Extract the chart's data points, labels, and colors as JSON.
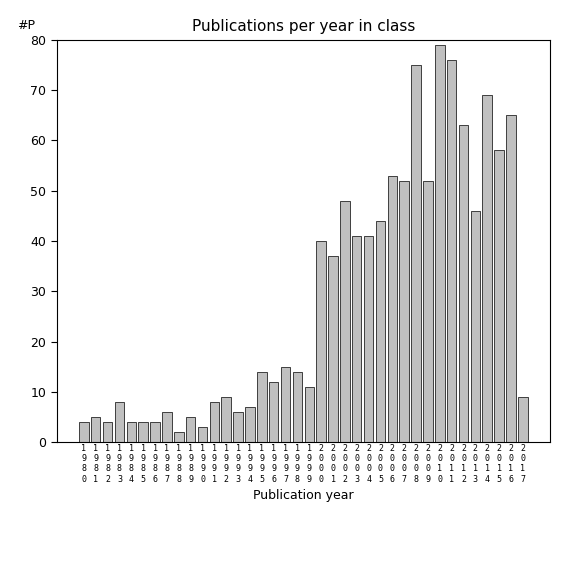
{
  "title": "Publications per year in class",
  "xlabel": "Publication year",
  "ylabel": "#P",
  "years": [
    "1980",
    "1981",
    "1982",
    "1983",
    "1984",
    "1985",
    "1986",
    "1987",
    "1988",
    "1989",
    "1990",
    "1991",
    "1992",
    "1993",
    "1994",
    "1995",
    "1996",
    "1997",
    "1998",
    "1999",
    "2000",
    "2001",
    "2002",
    "2003",
    "2004",
    "2005",
    "2006",
    "2007",
    "2008",
    "2009",
    "2010",
    "2011",
    "2012",
    "2013",
    "2014",
    "2015",
    "2016",
    "2017"
  ],
  "values": [
    4,
    5,
    4,
    8,
    4,
    4,
    4,
    6,
    2,
    5,
    3,
    8,
    9,
    6,
    7,
    14,
    12,
    15,
    14,
    11,
    40,
    37,
    48,
    41,
    41,
    44,
    53,
    52,
    75,
    52,
    79,
    76,
    63,
    46,
    69,
    58,
    65,
    9
  ],
  "bar_color": "#c0c0c0",
  "bar_edge_color": "#000000",
  "bar_edge_width": 0.5,
  "ylim": [
    0,
    80
  ],
  "yticks": [
    0,
    10,
    20,
    30,
    40,
    50,
    60,
    70,
    80
  ],
  "bg_color": "#ffffff",
  "title_fontsize": 11,
  "label_fontsize": 9,
  "tick_fontsize": 9
}
